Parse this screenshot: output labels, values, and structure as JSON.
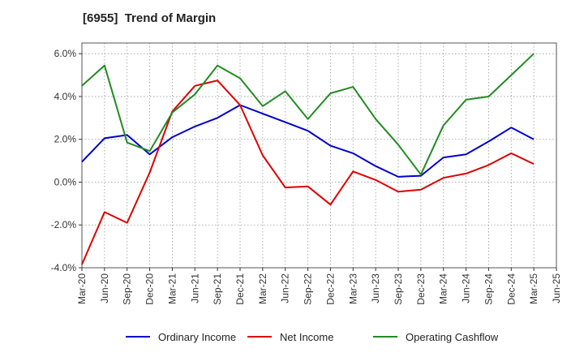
{
  "chart_data": {
    "type": "line",
    "title": "[6955]  Trend of Margin",
    "xlabel": "",
    "ylabel": "",
    "categories": [
      "Mar-20",
      "Jun-20",
      "Sep-20",
      "Dec-20",
      "Mar-21",
      "Jun-21",
      "Sep-21",
      "Dec-21",
      "Mar-22",
      "Jun-22",
      "Sep-22",
      "Dec-22",
      "Mar-23",
      "Jun-23",
      "Sep-23",
      "Dec-23",
      "Mar-24",
      "Jun-24",
      "Sep-24",
      "Dec-24",
      "Mar-25",
      "Jun-25"
    ],
    "ylim": [
      -4.0,
      6.5
    ],
    "yticks": [
      -4.0,
      -2.0,
      0.0,
      2.0,
      4.0,
      6.0
    ],
    "ytick_labels": [
      "-4.0%",
      "-2.0%",
      "0.0%",
      "2.0%",
      "4.0%",
      "6.0%"
    ],
    "grid": true,
    "legend_position": "bottom",
    "series": [
      {
        "name": "Ordinary Income",
        "color": "#0000cc",
        "values": [
          0.95,
          2.05,
          2.2,
          1.3,
          2.1,
          2.6,
          3.0,
          3.6,
          3.2,
          2.8,
          2.4,
          1.7,
          1.35,
          0.75,
          0.25,
          0.3,
          1.15,
          1.3,
          1.9,
          2.55,
          2.0,
          null
        ]
      },
      {
        "name": "Net Income",
        "color": "#dd0000",
        "values": [
          -3.85,
          -1.4,
          -1.9,
          0.45,
          3.3,
          4.5,
          4.75,
          3.6,
          1.25,
          -0.25,
          -0.2,
          -1.05,
          0.5,
          0.1,
          -0.45,
          -0.35,
          0.2,
          0.4,
          0.8,
          1.35,
          0.85,
          null
        ]
      },
      {
        "name": "Operating Cashflow",
        "color": "#228b22",
        "values": [
          4.5,
          5.45,
          1.85,
          1.45,
          3.25,
          4.1,
          5.45,
          4.85,
          3.55,
          4.25,
          2.95,
          4.15,
          4.45,
          2.95,
          1.75,
          0.35,
          2.65,
          3.85,
          4.0,
          5.0,
          6.0,
          null
        ]
      }
    ]
  }
}
